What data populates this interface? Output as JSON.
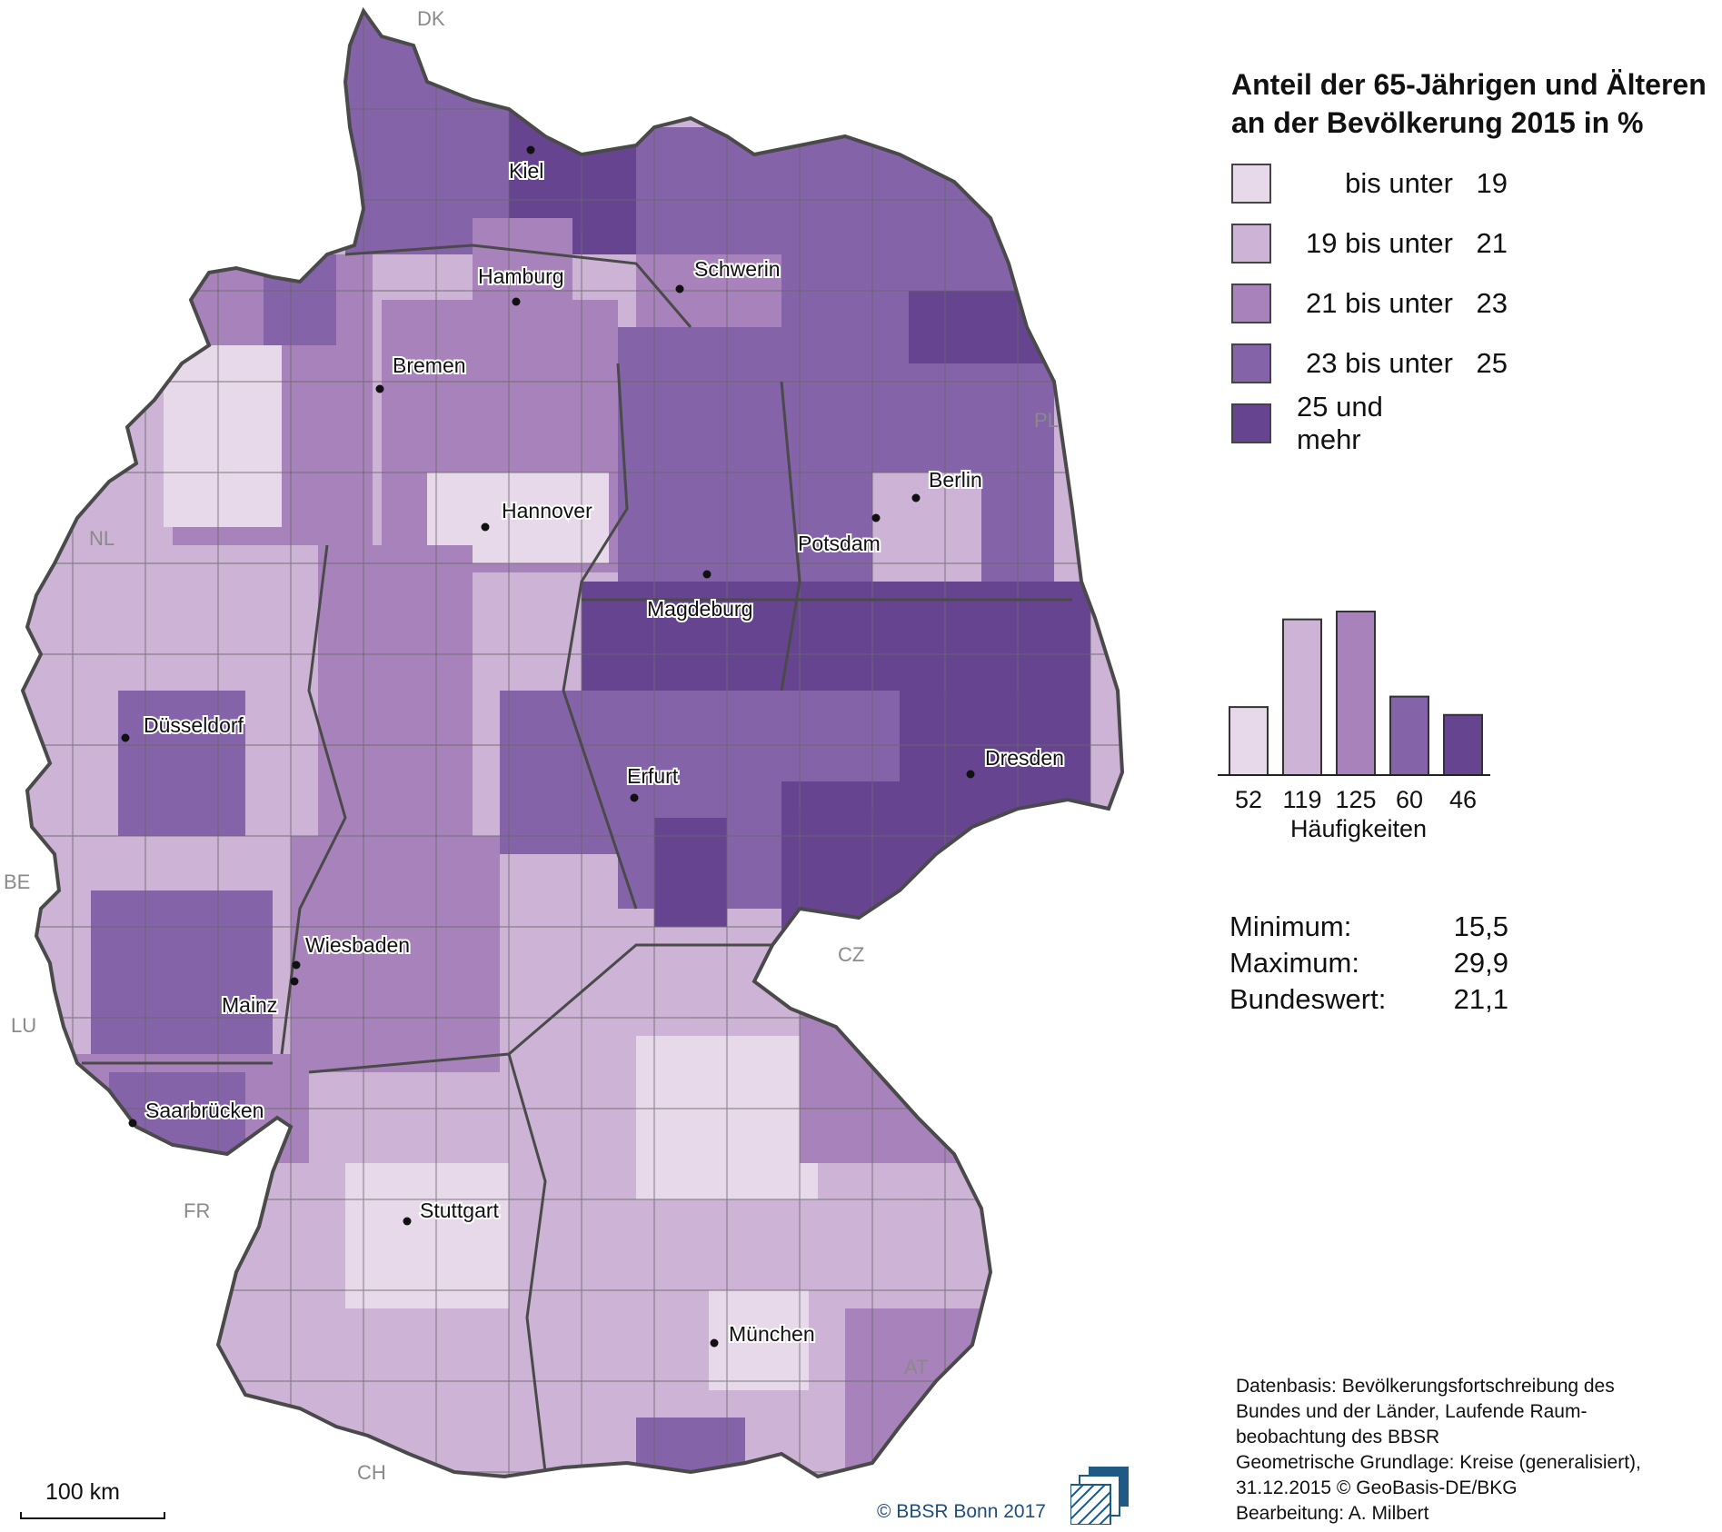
{
  "legend": {
    "title_line1": "Anteil der 65-Jährigen und Älteren",
    "title_line2": "an der Bevölkerung 2015 in %",
    "classes": [
      {
        "label": "bis unter",
        "value": "19",
        "color": "#e8d9ea"
      },
      {
        "label": "19 bis unter",
        "value": "21",
        "color": "#cdb3d6"
      },
      {
        "label": "21 bis unter",
        "value": "23",
        "color": "#a882bb"
      },
      {
        "label": "23 bis unter",
        "value": "25",
        "color": "#8463a8"
      },
      {
        "label": "25 und mehr",
        "value": "",
        "color": "#664490"
      }
    ]
  },
  "histogram": {
    "counts": [
      52,
      119,
      125,
      60,
      46
    ],
    "labels": [
      "52",
      "119",
      "125",
      "60",
      "46"
    ],
    "title": "Häufigkeiten"
  },
  "stats": {
    "min_label": "Minimum:",
    "min_value": "15,5",
    "max_label": "Maximum:",
    "max_value": "29,9",
    "national_label": "Bundeswert:",
    "national_value": "21,1"
  },
  "cities": [
    "Kiel",
    "Hamburg",
    "Schwerin",
    "Bremen",
    "Berlin",
    "Hannover",
    "Potsdam",
    "Magdeburg",
    "Düsseldorf",
    "Erfurt",
    "Dresden",
    "Wiesbaden",
    "Mainz",
    "Saarbrücken",
    "Stuttgart",
    "München"
  ],
  "countries": [
    "DK",
    "NL",
    "BE",
    "LU",
    "FR",
    "CH",
    "AT",
    "CZ",
    "PL"
  ],
  "source": {
    "line1": "Datenbasis: Bevölkerungsfortschreibung des",
    "line2": "Bundes und der Länder, Laufende Raum-",
    "line3": "beobachtung des BBSR",
    "line4": "Geometrische Grundlage: Kreise (generalisiert),",
    "line5": "31.12.2015 © GeoBasis-DE/BKG",
    "line6": "Bearbeitung: A. Milbert"
  },
  "copyright": "© BBSR Bonn 2017",
  "scalebar_label": "100 km"
}
